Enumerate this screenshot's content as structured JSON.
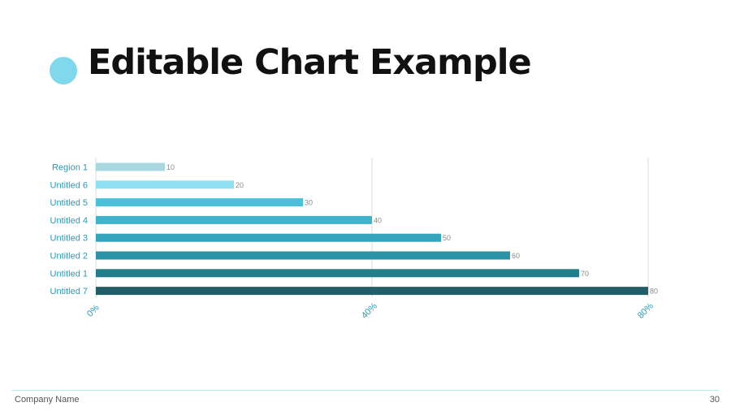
{
  "slide": {
    "title": "Editable Chart Example",
    "accent_color": "#7fd8ec",
    "footer_company": "Company Name",
    "page_number": "30",
    "footer_line_color": "#bfe6ef"
  },
  "chart_data": {
    "type": "bar",
    "orientation": "horizontal",
    "categories": [
      "Region 1",
      "Untitled 6",
      "Untitled 5",
      "Untitled 4",
      "Untitled 3",
      "Untitled 2",
      "Untitled 1",
      "Untitled 7"
    ],
    "values": [
      10,
      20,
      30,
      40,
      50,
      60,
      70,
      80
    ],
    "data_labels": [
      "10",
      "20",
      "30",
      "40",
      "50",
      "60",
      "70",
      "80"
    ],
    "bar_colors": [
      "#a9d7df",
      "#8de0f2",
      "#4cbfd9",
      "#3fb3cc",
      "#35a4bd",
      "#2b93a6",
      "#237e8b",
      "#225e68"
    ],
    "xlim": [
      0,
      80
    ],
    "x_ticks": [
      0,
      40,
      80
    ],
    "x_tick_labels": [
      "0%",
      "40%",
      "80%"
    ],
    "title": "",
    "xlabel": "",
    "ylabel": "",
    "grid": "vertical",
    "label_color": "#2a9bb8",
    "data_label_color": "#8a8a8a",
    "gridline_color": "#dcdcdc"
  }
}
